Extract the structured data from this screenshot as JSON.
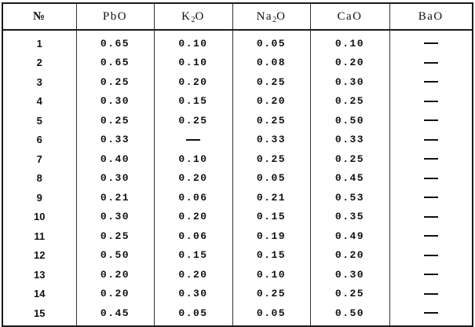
{
  "table": {
    "headers": [
      {
        "label": "№",
        "base": "№",
        "sub": "",
        "tail": ""
      },
      {
        "label": "PbO",
        "base": "PbO",
        "sub": "",
        "tail": ""
      },
      {
        "label": "K₂O",
        "base": "K",
        "sub": "2",
        "tail": "O"
      },
      {
        "label": "Na₂O",
        "base": "Na",
        "sub": "2",
        "tail": "O"
      },
      {
        "label": "CaO",
        "base": "CaO",
        "sub": "",
        "tail": ""
      },
      {
        "label": "BaO",
        "base": "BaO",
        "sub": "",
        "tail": ""
      }
    ],
    "dash": "—",
    "rows": [
      [
        "1",
        "0.65",
        "0.10",
        "0.05",
        "0.10",
        "—"
      ],
      [
        "2",
        "0.65",
        "0.10",
        "0.08",
        "0.20",
        "—"
      ],
      [
        "3",
        "0.25",
        "0.20",
        "0.25",
        "0.30",
        "—"
      ],
      [
        "4",
        "0.30",
        "0.15",
        "0.20",
        "0.25",
        "—"
      ],
      [
        "5",
        "0.25",
        "0.25",
        "0.25",
        "0.50",
        "—"
      ],
      [
        "6",
        "0.33",
        "—",
        "0.33",
        "0.33",
        "—"
      ],
      [
        "7",
        "0.40",
        "0.10",
        "0.25",
        "0.25",
        "—"
      ],
      [
        "8",
        "0.30",
        "0.20",
        "0.05",
        "0.45",
        "—"
      ],
      [
        "9",
        "0.21",
        "0.06",
        "0.21",
        "0.53",
        "—"
      ],
      [
        "10",
        "0.30",
        "0.20",
        "0.15",
        "0.35",
        "—"
      ],
      [
        "11",
        "0.25",
        "0.06",
        "0.19",
        "0.49",
        "—"
      ],
      [
        "12",
        "0.50",
        "0.15",
        "0.15",
        "0.20",
        "—"
      ],
      [
        "13",
        "0.20",
        "0.20",
        "0.10",
        "0.30",
        "—"
      ],
      [
        "14",
        "0.20",
        "0.30",
        "0.25",
        "0.25",
        "—"
      ],
      [
        "15",
        "0.45",
        "0.05",
        "0.05",
        "0.50",
        "—"
      ]
    ]
  }
}
